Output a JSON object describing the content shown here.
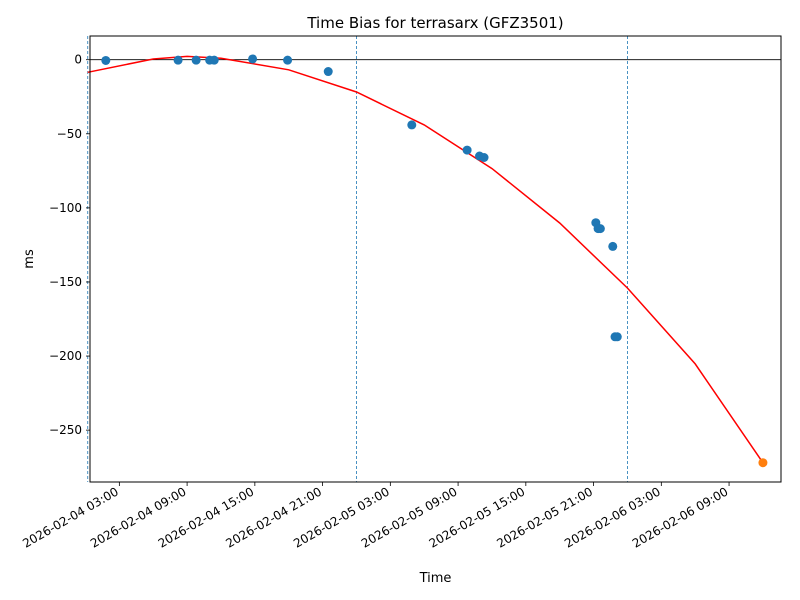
{
  "chart_data": {
    "type": "scatter",
    "title": "Time Bias for terrasarx (GFZ3501)",
    "xlabel": "Time",
    "ylabel": "ms",
    "xlim": [
      "2026-02-04 00:24",
      "2026-02-06 13:36"
    ],
    "ylim": [
      -285,
      16
    ],
    "x_ticks": [
      "2026-02-04 03:00",
      "2026-02-04 09:00",
      "2026-02-04 15:00",
      "2026-02-04 21:00",
      "2026-02-05 03:00",
      "2026-02-05 09:00",
      "2026-02-05 15:00",
      "2026-02-05 21:00",
      "2026-02-06 03:00",
      "2026-02-06 09:00"
    ],
    "y_ticks": [
      0,
      -50,
      -100,
      -150,
      -200,
      -250
    ],
    "vertical_lines": [
      "2026-02-04 00:12",
      "2026-02-05 00:00",
      "2026-02-06 00:00"
    ],
    "horizontal_line": 0,
    "grid": false,
    "colors": {
      "points": "#1f77b4",
      "prediction": "#ff7f0e",
      "fit": "#ff0000",
      "vlines": "#1f77b4"
    },
    "series": [
      {
        "points": [
          [
            "2026-02-04 01:48",
            -0.5
          ],
          [
            "2026-02-04 08:12",
            -0.3
          ],
          [
            "2026-02-04 09:48",
            -0.3
          ],
          [
            "2026-02-04 11:00",
            -0.3
          ],
          [
            "2026-02-04 11:24",
            -0.3
          ],
          [
            "2026-02-04 14:48",
            0.5
          ],
          [
            "2026-02-04 17:54",
            -0.3
          ],
          [
            "2026-02-04 21:30",
            -8
          ],
          [
            "2026-02-05 04:54",
            -44
          ],
          [
            "2026-02-05 09:48",
            -61
          ],
          [
            "2026-02-05 10:54",
            -65
          ],
          [
            "2026-02-05 11:18",
            -66
          ],
          [
            "2026-02-05 21:12",
            -110
          ],
          [
            "2026-02-05 21:24",
            -114
          ],
          [
            "2026-02-05 21:36",
            -114
          ],
          [
            "2026-02-05 22:42",
            -126
          ],
          [
            "2026-02-05 22:54",
            -187
          ],
          [
            "2026-02-05 23:06",
            -187
          ]
        ]
      },
      {
        "points": [
          [
            "2026-02-06 12:00",
            -272
          ]
        ]
      },
      {
        "type": "line",
        "x": [
          "2026-02-04 00:12",
          "2026-02-04 06:00",
          "2026-02-04 09:00",
          "2026-02-04 12:00",
          "2026-02-04 18:00",
          "2026-02-05 00:00",
          "2026-02-05 06:00",
          "2026-02-05 12:00",
          "2026-02-05 18:00",
          "2026-02-06 00:00",
          "2026-02-06 06:00",
          "2026-02-06 12:00"
        ],
        "y": [
          -8.5,
          0.5,
          2.2,
          1.0,
          -6.8,
          -21.8,
          -44.0,
          -73.5,
          -110.2,
          -154.1,
          -205.3,
          -272.0
        ]
      }
    ]
  }
}
